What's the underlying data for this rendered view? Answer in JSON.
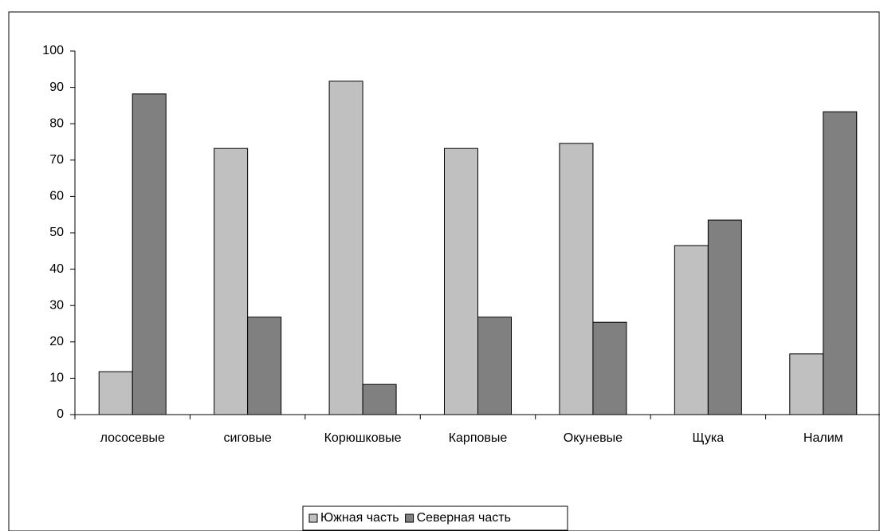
{
  "chart_data": {
    "type": "bar",
    "categories": [
      "лососевые",
      "сиговые",
      "Корюшковые",
      "Карповые",
      "Окуневые",
      "Щука",
      "Налим"
    ],
    "series": [
      {
        "name": "Южная часть",
        "color": "#c0c0c0",
        "values": [
          11.8,
          73.2,
          91.7,
          73.2,
          74.6,
          46.5,
          16.7
        ]
      },
      {
        "name": "Северная часть",
        "color": "#808080",
        "values": [
          88.2,
          26.8,
          8.3,
          26.8,
          25.4,
          53.5,
          83.3
        ]
      }
    ],
    "ylim": [
      0,
      100
    ],
    "yticks": [
      0,
      10,
      20,
      30,
      40,
      50,
      60,
      70,
      80,
      90,
      100
    ],
    "legend": "bottom"
  }
}
